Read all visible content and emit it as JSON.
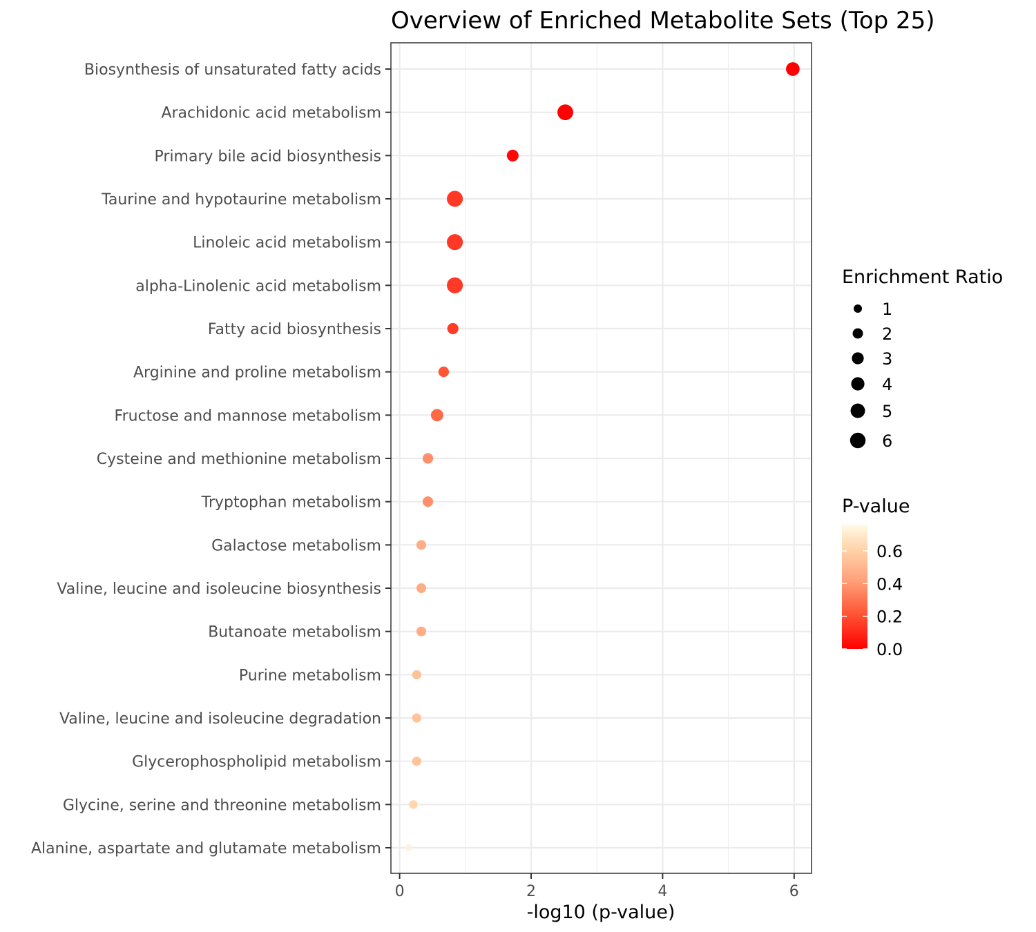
{
  "chart_data": {
    "type": "scatter",
    "title": "Overview of Enriched Metabolite Sets (Top 25)",
    "xlabel": "-log10 (p-value)",
    "ylabel": "",
    "xlim": [
      -0.15,
      6.25
    ],
    "xticks": [
      "0",
      "2",
      "4",
      "6"
    ],
    "grid": true,
    "legend_position": "right",
    "points": [
      {
        "name": "Biosynthesis of unsaturated fatty acids",
        "x": 5.98,
        "enrichment_ratio": 4.3,
        "p_value": 1e-06
      },
      {
        "name": "Arachidonic acid metabolism",
        "x": 2.52,
        "enrichment_ratio": 6.3,
        "p_value": 0.003
      },
      {
        "name": "Primary bile acid biosynthesis",
        "x": 1.72,
        "enrichment_ratio": 2.9,
        "p_value": 0.019
      },
      {
        "name": "Taurine and hypotaurine metabolism",
        "x": 0.84,
        "enrichment_ratio": 6.5,
        "p_value": 0.145
      },
      {
        "name": "Linoleic acid metabolism",
        "x": 0.84,
        "enrichment_ratio": 6.5,
        "p_value": 0.145
      },
      {
        "name": "alpha-Linolenic acid metabolism",
        "x": 0.84,
        "enrichment_ratio": 6.5,
        "p_value": 0.145
      },
      {
        "name": "Fatty acid biosynthesis",
        "x": 0.81,
        "enrichment_ratio": 2.5,
        "p_value": 0.155
      },
      {
        "name": "Arginine and proline metabolism",
        "x": 0.67,
        "enrichment_ratio": 2.1,
        "p_value": 0.214
      },
      {
        "name": "Fructose and mannose metabolism",
        "x": 0.57,
        "enrichment_ratio": 3.3,
        "p_value": 0.269
      },
      {
        "name": "Cysteine and methionine metabolism",
        "x": 0.43,
        "enrichment_ratio": 2.1,
        "p_value": 0.372
      },
      {
        "name": "Tryptophan metabolism",
        "x": 0.43,
        "enrichment_ratio": 2.1,
        "p_value": 0.372
      },
      {
        "name": "Galactose metabolism",
        "x": 0.33,
        "enrichment_ratio": 1.7,
        "p_value": 0.468
      },
      {
        "name": "Valine, leucine and isoleucine biosynthesis",
        "x": 0.33,
        "enrichment_ratio": 1.7,
        "p_value": 0.468
      },
      {
        "name": "Butanoate metabolism",
        "x": 0.33,
        "enrichment_ratio": 1.7,
        "p_value": 0.468
      },
      {
        "name": "Purine metabolism",
        "x": 0.26,
        "enrichment_ratio": 1.4,
        "p_value": 0.55
      },
      {
        "name": "Valine, leucine and isoleucine degradation",
        "x": 0.26,
        "enrichment_ratio": 1.4,
        "p_value": 0.55
      },
      {
        "name": "Glycerophospholipid metabolism",
        "x": 0.26,
        "enrichment_ratio": 1.4,
        "p_value": 0.55
      },
      {
        "name": "Glycine, serine and threonine metabolism",
        "x": 0.21,
        "enrichment_ratio": 1.1,
        "p_value": 0.62
      },
      {
        "name": "Alanine, aspartate and glutamate metabolism",
        "x": 0.14,
        "enrichment_ratio": 0.5,
        "p_value": 0.73
      }
    ],
    "size_legend": {
      "title": "Enrichment Ratio",
      "values": [
        1,
        2,
        3,
        4,
        5,
        6
      ],
      "labels": [
        "1",
        "2",
        "3",
        "4",
        "5",
        "6"
      ]
    },
    "color_legend": {
      "title": "P-value",
      "range": [
        0.0,
        0.76
      ],
      "ticks": [
        0.6,
        0.4,
        0.2,
        0.0
      ],
      "labels": [
        "0.6",
        "0.4",
        "0.2",
        "0.0"
      ],
      "low_color": "#ff0000",
      "high_color": "#fffae6"
    }
  }
}
